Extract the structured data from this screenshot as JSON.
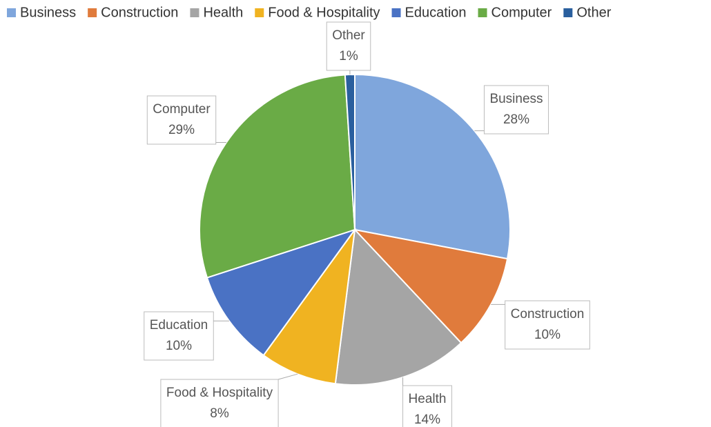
{
  "chart_data": {
    "type": "pie",
    "categories": [
      "Business",
      "Construction",
      "Health",
      "Food & Hospitality",
      "Education",
      "Computer",
      "Other"
    ],
    "values": [
      28,
      10,
      14,
      8,
      10,
      29,
      1
    ],
    "value_labels": [
      "28%",
      "10%",
      "14%",
      "8%",
      "10%",
      "29%",
      "1%"
    ],
    "colors": [
      "#7fa6dc",
      "#e07b3c",
      "#a5a5a5",
      "#f0b321",
      "#4a72c4",
      "#6aab46",
      "#2a5f9e"
    ],
    "legend": "top"
  }
}
